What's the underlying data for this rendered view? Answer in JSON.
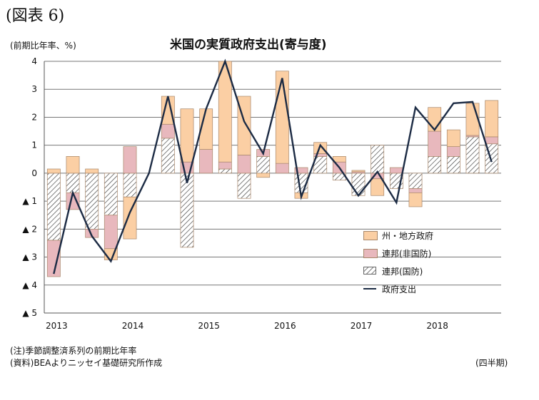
{
  "figure_label": "(図表 6)",
  "unit_label": "(前期比年率、%)",
  "notes": {
    "note1": "(注)季節調整済系列の前期比年率",
    "note2": "(資料)BEAよりニッセイ基礎研究所作成",
    "period": "(四半期)"
  },
  "colors": {
    "state_local": "#fbcfa4",
    "federal_nondefense": "#e8b8bd",
    "federal_defense_hatch": "#3a3a3a",
    "total_line": "#1c2b44",
    "bar_outline": "#a8876a"
  },
  "chart_data": {
    "type": "bar",
    "title": "米国の実質政府支出(寄与度)",
    "xlabel": "",
    "ylabel": "(前期比年率、%)",
    "ylim": [
      -5,
      4
    ],
    "y_ticks": [
      4,
      3,
      2,
      1,
      0,
      -1,
      -2,
      -3,
      -4,
      -5
    ],
    "y_tick_labels": [
      "4",
      "3",
      "2",
      "1",
      "0",
      "▲ 1",
      "▲ 2",
      "▲ 3",
      "▲ 4",
      "▲ 5"
    ],
    "x_year_labels": [
      "2013",
      "2014",
      "2015",
      "2016",
      "2017",
      "2018"
    ],
    "grid": true,
    "legend_position": "bottom-right",
    "categories": [
      "2013Q1",
      "2013Q2",
      "2013Q3",
      "2013Q4",
      "2014Q1",
      "2014Q2",
      "2014Q3",
      "2014Q4",
      "2015Q1",
      "2015Q2",
      "2015Q3",
      "2015Q4",
      "2016Q1",
      "2016Q2",
      "2016Q3",
      "2016Q4",
      "2017Q1",
      "2017Q2",
      "2017Q3",
      "2017Q4",
      "2018Q1",
      "2018Q2",
      "2018Q3",
      "2018Q4"
    ],
    "series": [
      {
        "name": "州・地方政府",
        "kind": "bar",
        "values": [
          0.15,
          0.6,
          0.15,
          -0.4,
          -1.5,
          0.0,
          1.0,
          1.9,
          1.45,
          3.6,
          2.1,
          -0.15,
          3.3,
          -0.2,
          0.4,
          0.2,
          0.05,
          -0.6,
          0.0,
          -0.5,
          0.85,
          0.6,
          1.15,
          1.3
        ]
      },
      {
        "name": "連邦(非国防)",
        "kind": "bar",
        "values": [
          -1.3,
          -0.6,
          -0.3,
          -1.2,
          0.95,
          0.0,
          0.5,
          0.4,
          0.85,
          0.25,
          0.65,
          0.25,
          0.35,
          0.2,
          0.1,
          0.4,
          0.05,
          -0.2,
          0.2,
          -0.15,
          0.9,
          0.35,
          0.05,
          0.25
        ]
      },
      {
        "name": "連邦(国防)",
        "kind": "bar",
        "values": [
          -2.4,
          -0.7,
          -2.0,
          -1.5,
          -0.85,
          0.0,
          1.25,
          -2.65,
          0.0,
          0.15,
          -0.9,
          0.6,
          0.0,
          -0.7,
          0.6,
          -0.25,
          -0.8,
          1.0,
          -0.55,
          -0.55,
          0.6,
          0.6,
          1.3,
          1.05
        ]
      },
      {
        "name": "政府支出",
        "kind": "line",
        "values": [
          -3.6,
          -0.7,
          -2.25,
          -3.15,
          -1.4,
          0.0,
          2.75,
          -0.35,
          2.3,
          4.0,
          1.85,
          0.7,
          3.4,
          -0.85,
          1.0,
          0.2,
          -0.8,
          0.05,
          -1.05,
          2.35,
          1.55,
          2.5,
          2.55,
          0.4
        ]
      }
    ]
  }
}
